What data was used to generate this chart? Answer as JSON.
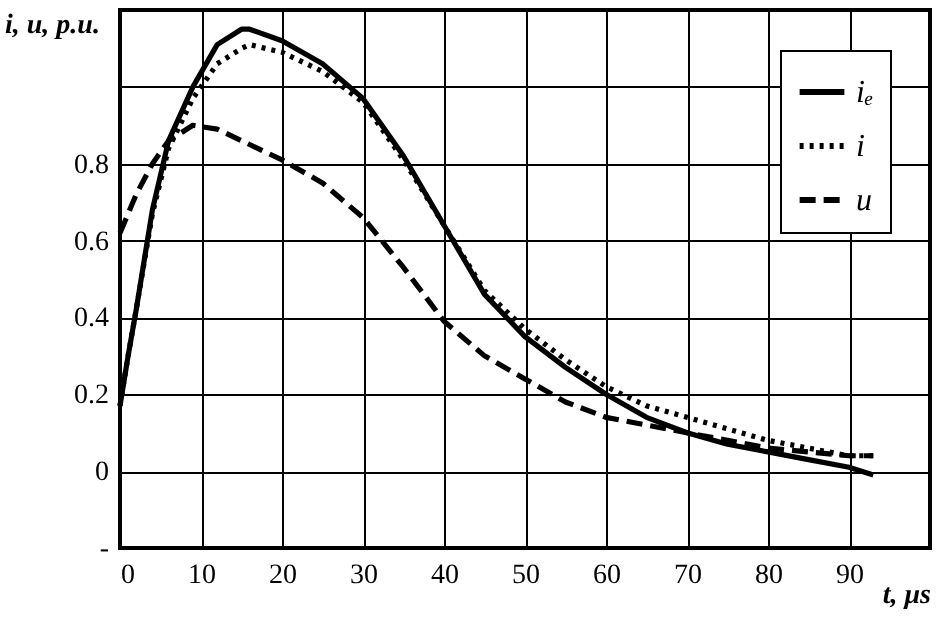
{
  "chart_data": {
    "type": "line",
    "ylabel": "i, u, p.u.",
    "xlabel": "t, μs",
    "x": [
      0,
      1,
      2,
      4,
      6,
      9,
      12,
      15,
      16,
      20,
      25,
      30,
      35,
      40,
      45,
      50,
      55,
      60,
      65,
      70,
      75,
      80,
      85,
      90,
      93
    ],
    "series": [
      {
        "name": "iₑ",
        "color": "#000000",
        "line_style": "solid",
        "values": [
          0.17,
          0.3,
          0.42,
          0.68,
          0.86,
          1.0,
          1.11,
          1.15,
          1.15,
          1.12,
          1.06,
          0.97,
          0.82,
          0.64,
          0.46,
          0.35,
          0.27,
          0.2,
          0.14,
          0.1,
          0.07,
          0.05,
          0.03,
          0.01,
          -0.01
        ]
      },
      {
        "name": "i",
        "color": "#000000",
        "line_style": "dotted",
        "values": [
          0.17,
          0.3,
          0.42,
          0.67,
          0.84,
          0.97,
          1.06,
          1.1,
          1.11,
          1.09,
          1.04,
          0.96,
          0.81,
          0.64,
          0.47,
          0.37,
          0.29,
          0.22,
          0.17,
          0.14,
          0.11,
          0.08,
          0.06,
          0.04,
          0.04
        ]
      },
      {
        "name": "u",
        "color": "#000000",
        "line_style": "dashed",
        "values": [
          0.62,
          0.67,
          0.72,
          0.8,
          0.86,
          0.9,
          0.89,
          0.86,
          0.85,
          0.81,
          0.75,
          0.66,
          0.53,
          0.39,
          0.3,
          0.24,
          0.18,
          0.14,
          0.12,
          0.1,
          0.08,
          0.06,
          0.05,
          0.04,
          0.04
        ]
      }
    ],
    "xlim": [
      0,
      100
    ],
    "xticks": [
      0,
      10,
      20,
      30,
      40,
      50,
      60,
      70,
      80,
      90
    ],
    "ylim": [
      -0.2,
      1.2
    ],
    "yticks": [
      {
        "value": -0.2,
        "label": "-"
      },
      0,
      0.2,
      0.4,
      0.6,
      0.8,
      {
        "value": 1,
        "label": null
      },
      {
        "value": 1.2,
        "label": null
      }
    ],
    "grid": true,
    "legend": "top right",
    "marker": "none"
  }
}
